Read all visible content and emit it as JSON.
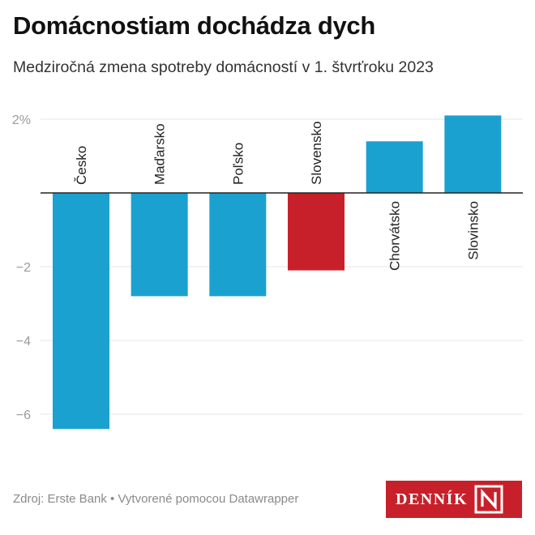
{
  "title": "Domácnostiam dochádza dych",
  "subtitle": "Medziročná zmena spotreby domácností v 1. štvrťroku 2023",
  "footer": "Zdroj: Erste Bank • Vytvorené pomocou Datawrapper",
  "logo": {
    "text": "DENNÍK",
    "mark": "N"
  },
  "colors": {
    "bar": "#1ba1cf",
    "highlight": "#c8202a",
    "grid": "#e4e4e4",
    "axis": "#222222",
    "tick": "#9a9a9a"
  },
  "chart_data": {
    "type": "bar",
    "categories": [
      "Česko",
      "Maďarsko",
      "Poľsko",
      "Slovensko",
      "Chorvátsko",
      "Slovinsko"
    ],
    "values": [
      -6.4,
      -2.8,
      -2.8,
      -2.1,
      1.4,
      2.1
    ],
    "highlight": "Slovensko",
    "yticks": [
      {
        "value": 2,
        "label": "2%"
      },
      {
        "value": -2,
        "label": "−2"
      },
      {
        "value": -4,
        "label": "−4"
      },
      {
        "value": -6,
        "label": "−6"
      }
    ],
    "ylim": [
      -6.7,
      2.3
    ],
    "grid": true,
    "xlabel": "",
    "ylabel": ""
  }
}
